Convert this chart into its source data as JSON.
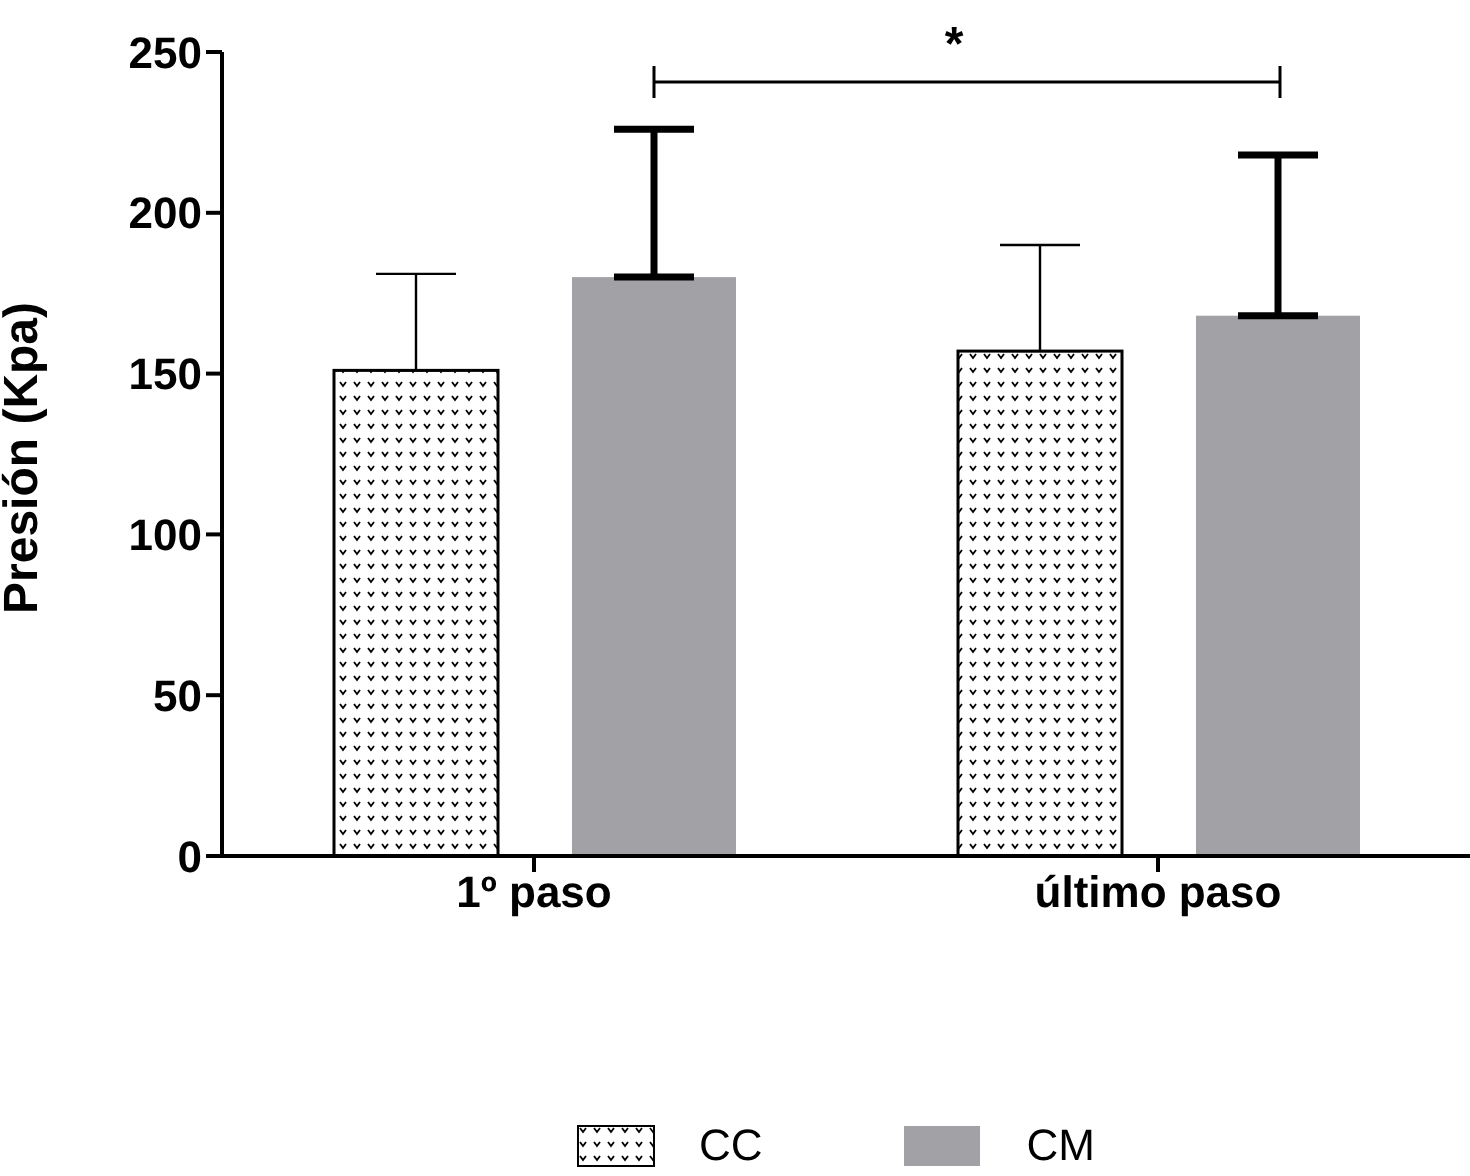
{
  "chart_data": {
    "type": "bar",
    "ylabel": "Presión (Kpa)",
    "categories": [
      "1º paso",
      "último paso"
    ],
    "series": [
      {
        "name": "CC",
        "color": "#ffffff",
        "values": [
          151,
          157
        ],
        "errors": [
          [
            151,
            181
          ],
          [
            157,
            190
          ]
        ]
      },
      {
        "name": "CM",
        "color": "#a2a1a6",
        "values": [
          180,
          168
        ],
        "errors": [
          [
            180,
            226
          ],
          [
            168,
            218
          ]
        ]
      }
    ],
    "ylim": [
      0,
      250
    ],
    "yticks": [
      0,
      50,
      100,
      150,
      200,
      250
    ],
    "grid": false,
    "legend": "bottom",
    "annotations": [
      "*"
    ]
  }
}
